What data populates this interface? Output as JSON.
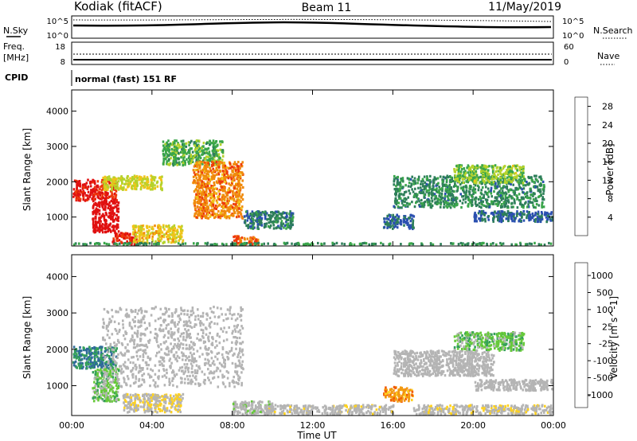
{
  "header": {
    "site": "Kodiak (fitACF)",
    "beam": "Beam 11",
    "date": "11/May/2019"
  },
  "status_panels": {
    "nsky_label": "N.Sky",
    "nsky_ticks": [
      "10^5",
      "10^0"
    ],
    "nsearch_label": "N.Search",
    "nsearch_ticks": [
      "10^5",
      "10^0"
    ],
    "freq_label_line1": "Freq.",
    "freq_label_line2": "[MHz]",
    "freq_ticks": [
      "18",
      "8"
    ],
    "nave_label": "Nave",
    "nave_ticks": [
      "60",
      "0"
    ],
    "cpid_label": "CPID",
    "cpid_value": "normal (fast) 151 RF"
  },
  "colors": {
    "power_scale": [
      "#1a1aff",
      "#2a4fb0",
      "#2e7f5a",
      "#3aa64a",
      "#b5d22b",
      "#f0c419",
      "#f08a0c",
      "#ee3a0a",
      "#e01010"
    ],
    "velocity_scale": [
      "#1e3fa8",
      "#2f6b9a",
      "#34a05a",
      "#66c93a",
      "#b4b4b4",
      "#b4b4b4",
      "#ffd21f",
      "#f29a11",
      "#f05a08",
      "#e01010"
    ]
  },
  "chart_data": [
    {
      "type": "heatmap",
      "title": "Power",
      "xlabel": "Time UT",
      "ylabel": "Slant Range [km]",
      "x_range": [
        "00:00",
        "24:00"
      ],
      "ylim": [
        180,
        4600
      ],
      "x_ticks": [
        "00:00",
        "04:00",
        "08:00",
        "12:00",
        "16:00",
        "20:00",
        "00:00"
      ],
      "y_ticks": [
        "1000",
        "2000",
        "3000",
        "4000"
      ],
      "colorbar_label": "Power [dB]",
      "colorbar_ticks": [
        "4",
        "8",
        "12",
        "16",
        "20",
        "24",
        "28"
      ],
      "colorbar_range": [
        0,
        30
      ],
      "regions": [
        {
          "t0": 0.0,
          "t1": 2.2,
          "r0": 1500,
          "r1": 2100,
          "level": 28
        },
        {
          "t0": 1.0,
          "t1": 2.3,
          "r0": 600,
          "r1": 1500,
          "level": 30
        },
        {
          "t0": 2.0,
          "t1": 3.2,
          "r0": 200,
          "r1": 600,
          "level": 27
        },
        {
          "t0": 3.0,
          "t1": 5.5,
          "r0": 300,
          "r1": 800,
          "level": 18
        },
        {
          "t0": 1.5,
          "t1": 4.5,
          "r0": 1800,
          "r1": 2200,
          "level": 16
        },
        {
          "t0": 4.5,
          "t1": 7.5,
          "r0": 2500,
          "r1": 3200,
          "level": 12
        },
        {
          "t0": 6.0,
          "t1": 8.5,
          "r0": 1000,
          "r1": 2600,
          "level": 22
        },
        {
          "t0": 8.5,
          "t1": 11.0,
          "r0": 700,
          "r1": 1200,
          "level": 8
        },
        {
          "t0": 8.0,
          "t1": 9.3,
          "r0": 200,
          "r1": 500,
          "level": 24
        },
        {
          "t0": 15.5,
          "t1": 17.0,
          "r0": 700,
          "r1": 1100,
          "level": 6
        },
        {
          "t0": 16.0,
          "t1": 23.5,
          "r0": 1300,
          "r1": 2200,
          "level": 9
        },
        {
          "t0": 19.0,
          "t1": 22.5,
          "r0": 2000,
          "r1": 2500,
          "level": 14
        },
        {
          "t0": 20.0,
          "t1": 24.0,
          "r0": 900,
          "r1": 1200,
          "level": 6
        },
        {
          "t0": 0.0,
          "t1": 24.0,
          "r0": 180,
          "r1": 300,
          "level": 10
        }
      ]
    },
    {
      "type": "heatmap",
      "title": "Velocity",
      "xlabel": "Time UT",
      "ylabel": "Slant Range [km]",
      "x_range": [
        "00:00",
        "24:00"
      ],
      "ylim": [
        180,
        4600
      ],
      "x_ticks": [
        "00:00",
        "04:00",
        "08:00",
        "12:00",
        "16:00",
        "20:00",
        "00:00"
      ],
      "y_ticks": [
        "1000",
        "2000",
        "3000",
        "4000"
      ],
      "colorbar_label": "Velocity [m s^-1]",
      "colorbar_ticks": [
        "1000",
        "500",
        "100",
        "25",
        "-25",
        "-100",
        "-500",
        "-1000"
      ],
      "colorbar_range": [
        -1000,
        1000
      ],
      "regions": [
        {
          "t0": 0.0,
          "t1": 2.2,
          "r0": 1500,
          "r1": 2100,
          "level": 600
        },
        {
          "t0": 1.0,
          "t1": 2.3,
          "r0": 600,
          "r1": 1500,
          "level": 300
        },
        {
          "t0": 2.5,
          "t1": 5.5,
          "r0": 300,
          "r1": 800,
          "level": -150
        },
        {
          "t0": 1.5,
          "t1": 8.5,
          "r0": 1000,
          "r1": 3200,
          "level": 0
        },
        {
          "t0": 8.0,
          "t1": 10.0,
          "r0": 250,
          "r1": 600,
          "level": 80
        },
        {
          "t0": 9.5,
          "t1": 16.0,
          "r0": 200,
          "r1": 500,
          "level": -60
        },
        {
          "t0": 15.5,
          "t1": 17.0,
          "r0": 600,
          "r1": 1000,
          "level": -500
        },
        {
          "t0": 17.0,
          "t1": 24.0,
          "r0": 200,
          "r1": 500,
          "level": -80
        },
        {
          "t0": 16.0,
          "t1": 21.0,
          "r0": 1300,
          "r1": 2000,
          "level": 0
        },
        {
          "t0": 19.0,
          "t1": 22.5,
          "r0": 2000,
          "r1": 2500,
          "level": 300
        },
        {
          "t0": 20.0,
          "t1": 24.0,
          "r0": 900,
          "r1": 1200,
          "level": 0
        }
      ]
    }
  ]
}
